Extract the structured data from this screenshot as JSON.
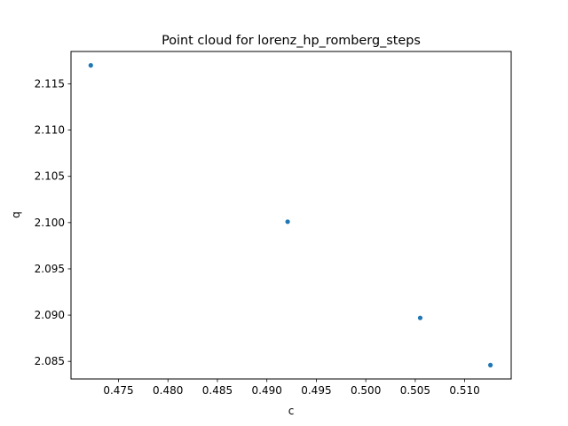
{
  "chart_data": {
    "type": "scatter",
    "title": "Point cloud for lorenz_hp_romberg_steps",
    "xlabel": "c",
    "ylabel": "q",
    "xlim": [
      0.4702,
      0.5147
    ],
    "ylim": [
      2.0831,
      2.1185
    ],
    "xticks": [
      0.475,
      0.48,
      0.485,
      0.49,
      0.495,
      0.5,
      0.505,
      0.51
    ],
    "xtick_labels": [
      "0.475",
      "0.480",
      "0.485",
      "0.490",
      "0.495",
      "0.500",
      "0.505",
      "0.510"
    ],
    "yticks": [
      2.085,
      2.09,
      2.095,
      2.1,
      2.105,
      2.11,
      2.115
    ],
    "ytick_labels": [
      "2.085",
      "2.090",
      "2.095",
      "2.100",
      "2.105",
      "2.110",
      "2.115"
    ],
    "grid": false,
    "point_color": "#1f77b4",
    "points": [
      {
        "x": 0.4722,
        "y": 2.117
      },
      {
        "x": 0.4921,
        "y": 2.1001
      },
      {
        "x": 0.5055,
        "y": 2.0897
      },
      {
        "x": 0.5126,
        "y": 2.0846
      }
    ]
  }
}
